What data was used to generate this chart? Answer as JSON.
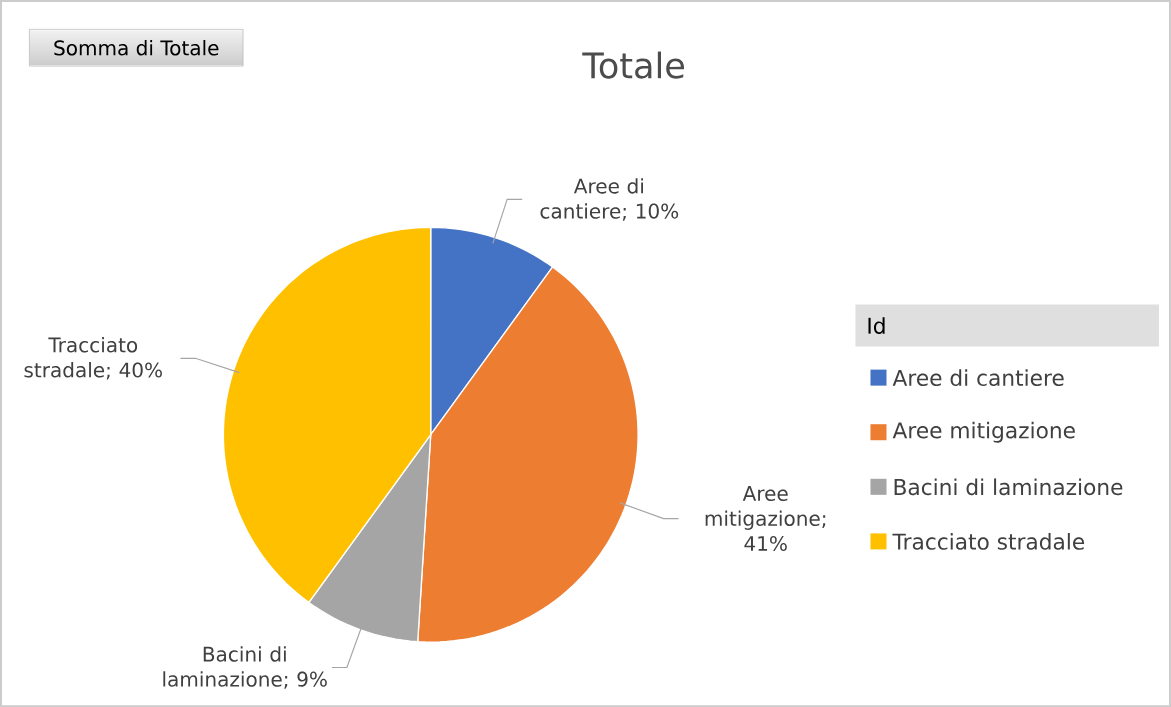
{
  "chart_data": {
    "type": "pie",
    "title": "Totale",
    "legend_title": "Id",
    "legend": "right",
    "categories": [
      "Aree di cantiere",
      "Aree mitigazione",
      "Bacini di laminazione",
      "Tracciato stradale"
    ],
    "values": [
      10,
      41,
      9,
      40
    ],
    "colors": [
      "#4472c4",
      "#ed7d31",
      "#a5a5a5",
      "#ffc000"
    ],
    "value_labels": [
      "Aree di cantiere; 10%",
      "Aree mitigazione; 41%",
      "Bacini di laminazione; 9%",
      "Tracciato stradale; 40%"
    ],
    "annotations": [
      "Somma di Totale"
    ]
  }
}
